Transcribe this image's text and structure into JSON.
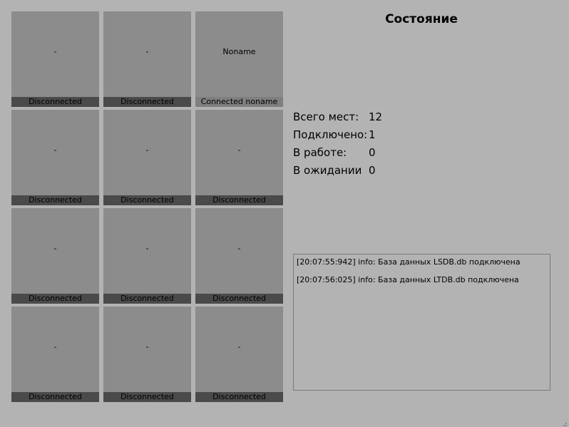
{
  "grid": {
    "tiles": [
      {
        "name": "-",
        "status": "Disconnected",
        "connected": false
      },
      {
        "name": "-",
        "status": "Disconnected",
        "connected": false
      },
      {
        "name": "Noname",
        "status": "Connected noname",
        "connected": true
      },
      {
        "name": "-",
        "status": "Disconnected",
        "connected": false
      },
      {
        "name": "-",
        "status": "Disconnected",
        "connected": false
      },
      {
        "name": "-",
        "status": "Disconnected",
        "connected": false
      },
      {
        "name": "-",
        "status": "Disconnected",
        "connected": false
      },
      {
        "name": "-",
        "status": "Disconnected",
        "connected": false
      },
      {
        "name": "-",
        "status": "Disconnected",
        "connected": false
      },
      {
        "name": "-",
        "status": "Disconnected",
        "connected": false
      },
      {
        "name": "-",
        "status": "Disconnected",
        "connected": false
      },
      {
        "name": "-",
        "status": "Disconnected",
        "connected": false
      }
    ]
  },
  "state": {
    "title": "Состояние",
    "rows": [
      {
        "label": "Всего мест:",
        "value": "12"
      },
      {
        "label": "Подключено:",
        "value": "1"
      },
      {
        "label": "В работе:",
        "value": "0"
      },
      {
        "label": "В ожидании",
        "value": "0"
      }
    ]
  },
  "log": {
    "lines": [
      "[20:07:55:942] info: База данных LSDB.db подключена",
      "[20:07:56:025] info: База данных LTDB.db подключена"
    ]
  },
  "icons": {
    "resize_grip": "resize-grip-icon"
  },
  "colors": {
    "background": "#b3b3b3",
    "tile": "#8c8c8c",
    "status_disconnected": "#4a4a4a",
    "status_connected": "#7f7f7f"
  }
}
